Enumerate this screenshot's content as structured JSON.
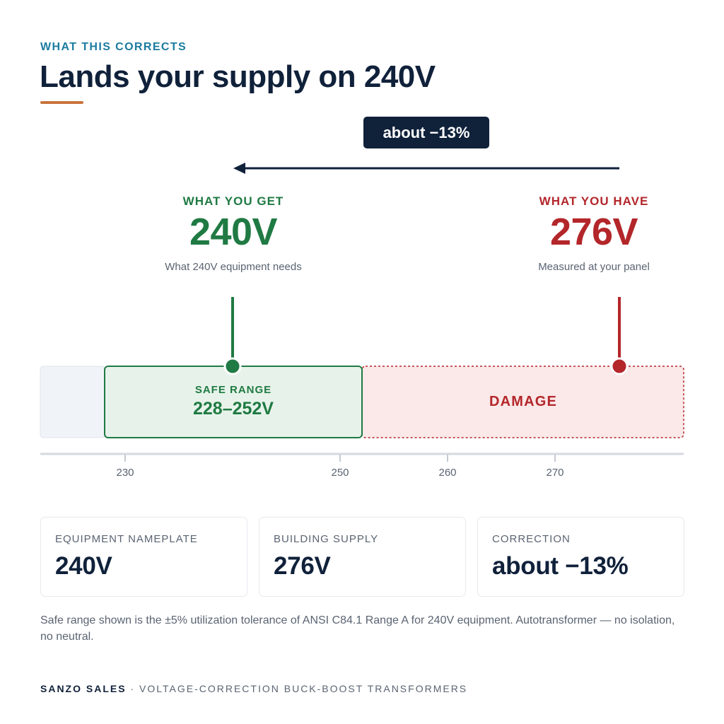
{
  "header": {
    "eyebrow": "WHAT THIS CORRECTS",
    "title": "Lands your supply on 240V"
  },
  "correction_pill": "about −13%",
  "what_you_get": {
    "label": "WHAT YOU GET",
    "value": "240V",
    "caption": "What 240V equipment needs"
  },
  "what_you_have": {
    "label": "WHAT YOU HAVE",
    "value": "276V",
    "caption": "Measured at your panel"
  },
  "scale": {
    "safe_label": "SAFE RANGE",
    "safe_range": "228–252V",
    "damage_label": "DAMAGE",
    "ticks": [
      "230",
      "250",
      "260",
      "270"
    ]
  },
  "cards": [
    {
      "label": "EQUIPMENT NAMEPLATE",
      "value": "240V"
    },
    {
      "label": "BUILDING SUPPLY",
      "value": "276V"
    },
    {
      "label": "CORRECTION",
      "value": "about −13%"
    }
  ],
  "footnote": "Safe range shown is the ±5% utilization tolerance of ANSI C84.1 Range A for 240V equipment. Autotransformer — no isolation, no neutral.",
  "footer": {
    "brand": "SANZO SALES",
    "separator": "·",
    "tagline": "VOLTAGE-CORRECTION BUCK-BOOST TRANSFORMERS"
  },
  "colors": {
    "navy": "#10213a",
    "green": "#1f7a43",
    "red": "#b3262a",
    "accent": "#c8743e",
    "eyebrow": "#1c7ba0"
  }
}
